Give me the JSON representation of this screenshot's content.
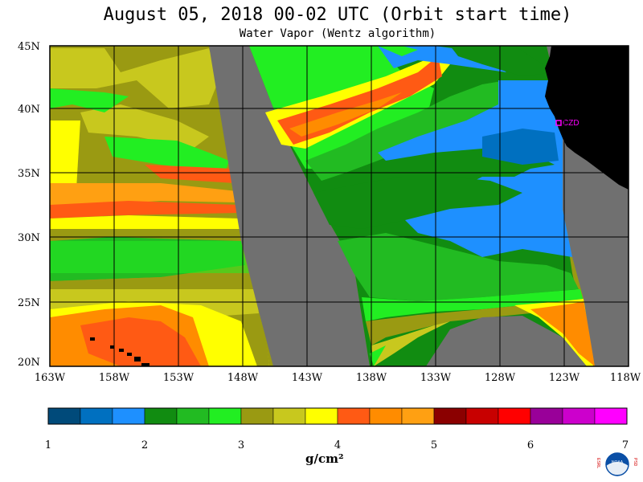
{
  "title": "August 05, 2018  00-02 UTC  (Orbit start time)",
  "subtitle": "Water Vapor (Wentz algorithm)",
  "station_label": "CZD",
  "lat_labels": [
    "45N",
    "40N",
    "35N",
    "30N",
    "25N",
    "20N"
  ],
  "lon_labels": [
    "163W",
    "158W",
    "153W",
    "148W",
    "143W",
    "138W",
    "133W",
    "128W",
    "123W",
    "118W"
  ],
  "colorbar": {
    "ticks": [
      "1",
      "2",
      "3",
      "4",
      "5",
      "6",
      "7"
    ],
    "unit": "g/cm²",
    "colors": [
      "#004a7a",
      "#0070c0",
      "#1e90ff",
      "#118c11",
      "#22bb22",
      "#22ee22",
      "#9a9a12",
      "#c8c81e",
      "#ffff00",
      "#ff5a14",
      "#ff8c00",
      "#ffa012",
      "#8b0000",
      "#c80000",
      "#ff0000",
      "#990099",
      "#cc00cc",
      "#ff00ff"
    ]
  },
  "colors": {
    "swath_gap": "#707070",
    "land": "#000000",
    "no_data": "#707070",
    "station_marker": "#ff00ff"
  },
  "logo": {
    "left_letters": "ESRL",
    "right_letters": "PSD",
    "center": "NOAA"
  }
}
